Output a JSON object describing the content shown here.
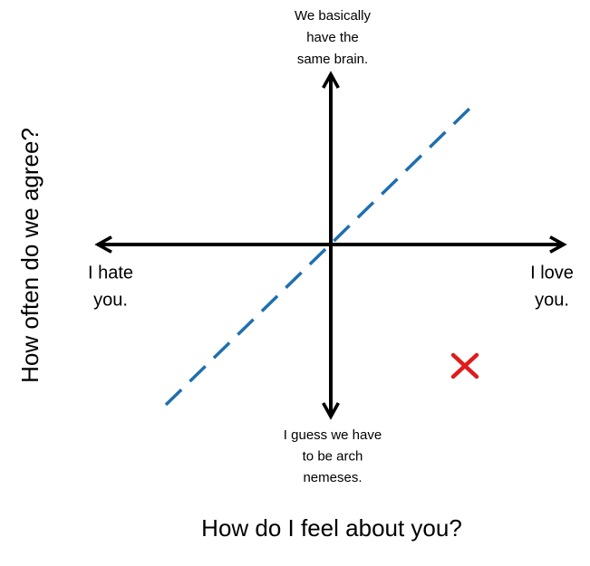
{
  "axes": {
    "x_title": "How do I feel about you?",
    "y_title": "How often do we agree?"
  },
  "labels": {
    "top": [
      "We basically",
      "have the",
      "same brain."
    ],
    "left": [
      "I hate",
      "you."
    ],
    "right": [
      "I love",
      "you."
    ],
    "bottom": [
      "I guess we have",
      "to be arch",
      "nemeses."
    ]
  }
}
